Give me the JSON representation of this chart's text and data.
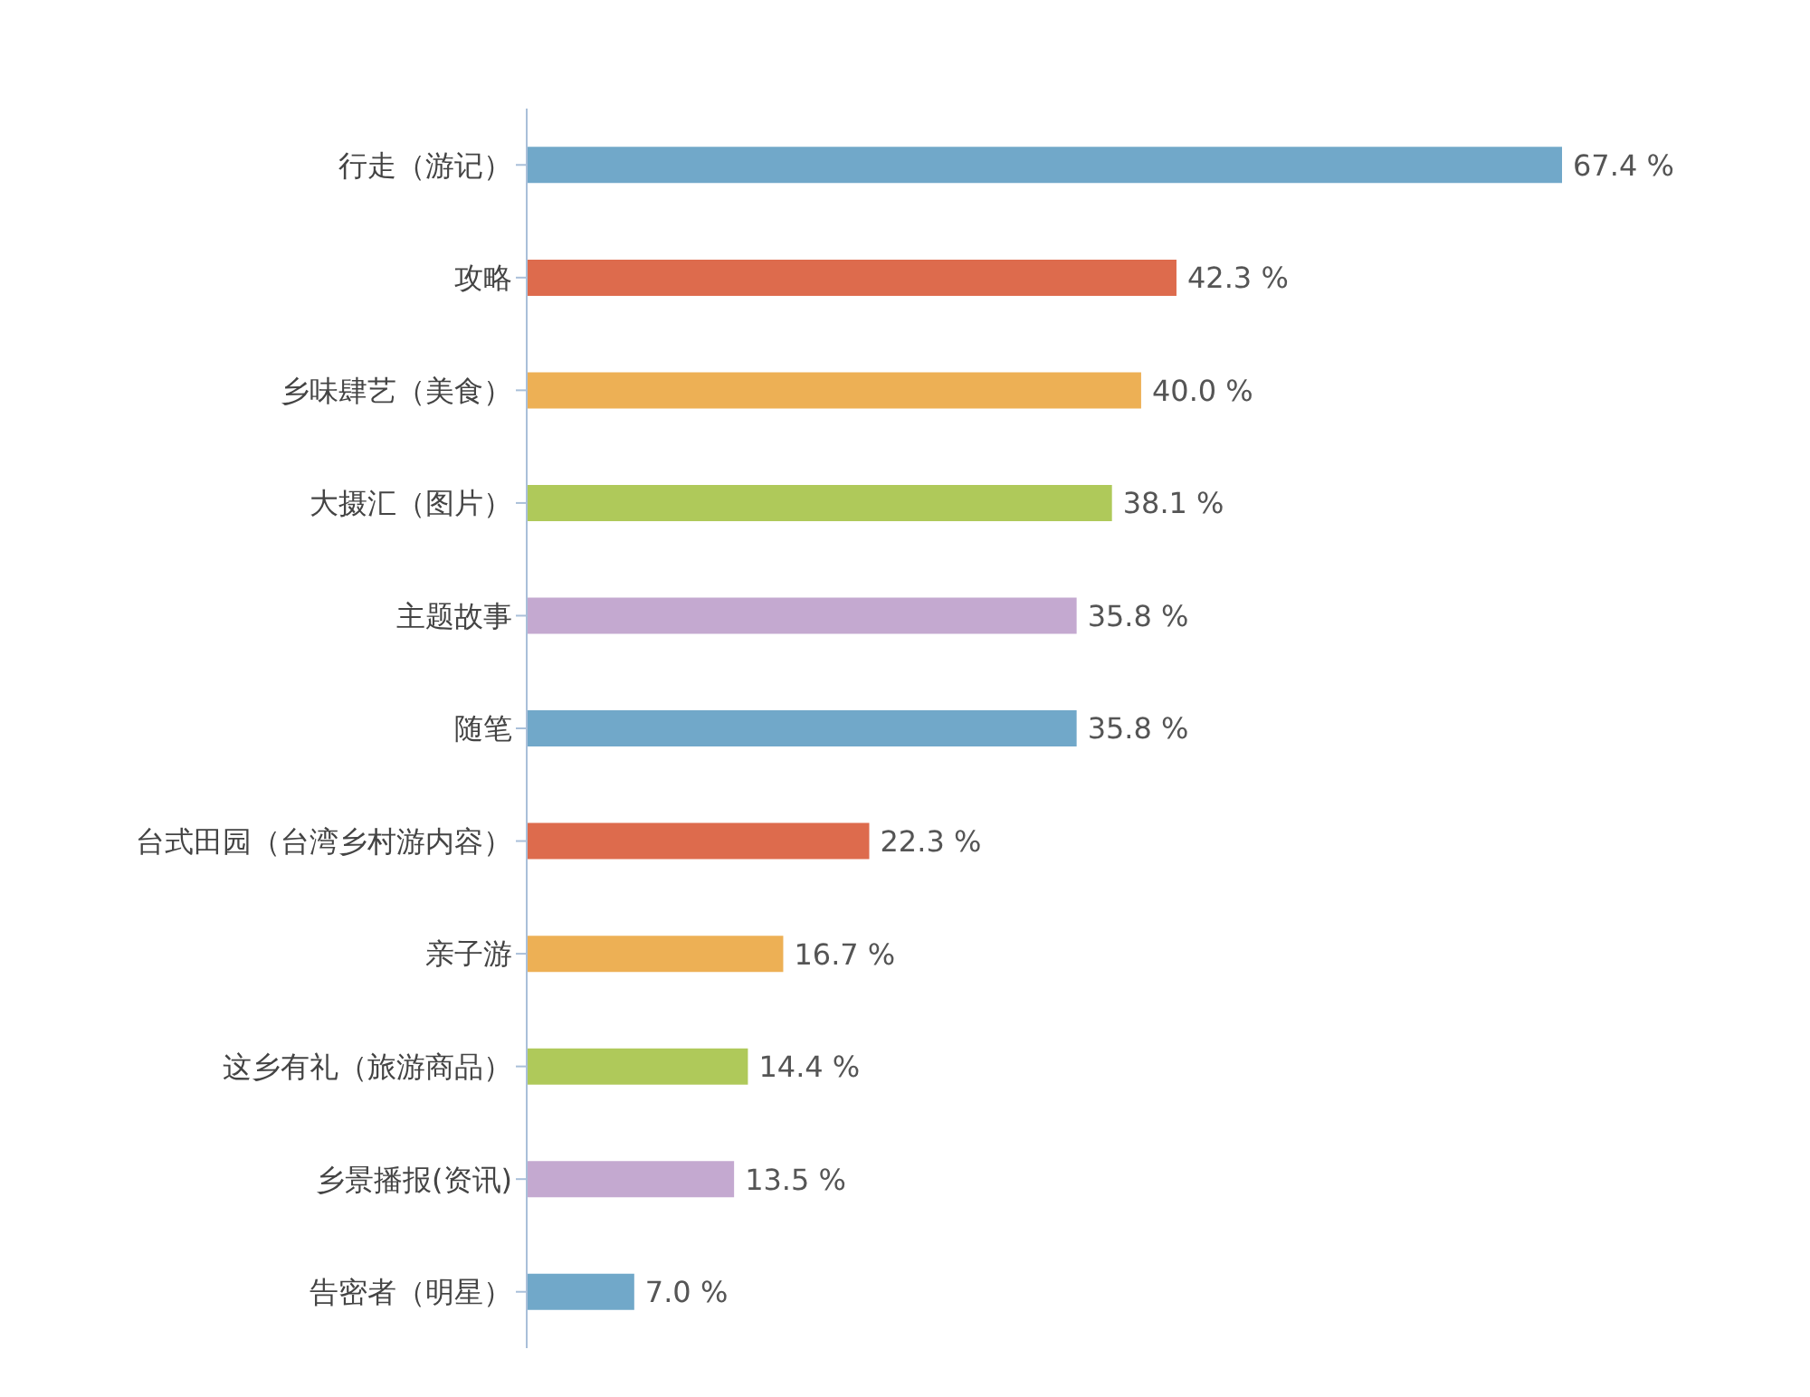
{
  "chart_data": {
    "type": "bar",
    "orientation": "horizontal",
    "categories": [
      "行走（游记）",
      "攻略",
      "乡味肆艺（美食）",
      "大摄汇（图片）",
      "主题故事",
      "随笔",
      "台式田园（台湾乡村游内容）",
      "亲子游",
      "这乡有礼（旅游商品）",
      "乡景播报(资讯)",
      "告密者（明星）"
    ],
    "values": [
      67.4,
      42.3,
      40.0,
      38.1,
      35.8,
      35.8,
      22.3,
      16.7,
      14.4,
      13.5,
      7.0
    ],
    "value_labels": [
      "67.4 %",
      "42.3 %",
      "40.0 %",
      "38.1 %",
      "35.8 %",
      "35.8 %",
      "22.3 %",
      "16.7 %",
      "14.4 %",
      "13.5 %",
      "7.0 %"
    ],
    "colors": [
      "#71a8c9",
      "#dd6b4d",
      "#edb055",
      "#afc95a",
      "#c4a9d0",
      "#71a8c9",
      "#dd6b4d",
      "#edb055",
      "#afc95a",
      "#c4a9d0",
      "#71a8c9"
    ]
  }
}
